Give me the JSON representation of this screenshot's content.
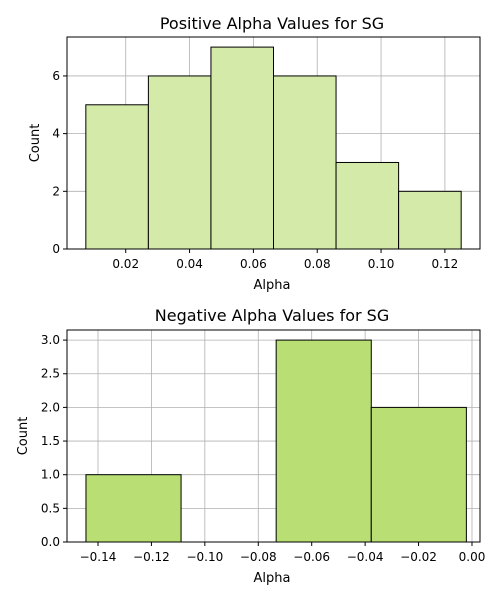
{
  "chart_data": [
    {
      "type": "bar",
      "title": "Positive Alpha Values for SG",
      "xlabel": "Alpha",
      "ylabel": "Count",
      "bins": [
        {
          "x0": 0.0075,
          "x1": 0.0271,
          "count": 5
        },
        {
          "x0": 0.0271,
          "x1": 0.0467,
          "count": 6
        },
        {
          "x0": 0.0467,
          "x1": 0.0663,
          "count": 7
        },
        {
          "x0": 0.0663,
          "x1": 0.0859,
          "count": 6
        },
        {
          "x0": 0.0859,
          "x1": 0.1055,
          "count": 3
        },
        {
          "x0": 0.1055,
          "x1": 0.1251,
          "count": 2
        }
      ],
      "xlim": [
        0.0016,
        0.131
      ],
      "ylim": [
        0,
        7.35
      ],
      "xticks": [
        0.02,
        0.04,
        0.06,
        0.08,
        0.1,
        0.12
      ],
      "xtick_labels": [
        "0.02",
        "0.04",
        "0.06",
        "0.08",
        "0.10",
        "0.12"
      ],
      "yticks": [
        0,
        2,
        4,
        6
      ],
      "ytick_labels": [
        "0",
        "2",
        "4",
        "6"
      ],
      "bar_color": "#d3eaa9",
      "grid": true
    },
    {
      "type": "bar",
      "title": "Negative Alpha Values for SG",
      "xlabel": "Alpha",
      "ylabel": "Count",
      "bins": [
        {
          "x0": -0.1445,
          "x1": -0.1089,
          "count": 1
        },
        {
          "x0": -0.1089,
          "x1": -0.0733,
          "count": 0
        },
        {
          "x0": -0.0733,
          "x1": -0.0377,
          "count": 3
        },
        {
          "x0": -0.0377,
          "x1": -0.0021,
          "count": 2
        }
      ],
      "xlim": [
        -0.1516,
        0.003
      ],
      "ylim": [
        0,
        3.15
      ],
      "xticks": [
        -0.14,
        -0.12,
        -0.1,
        -0.08,
        -0.06,
        -0.04,
        -0.02,
        0.0
      ],
      "xtick_labels": [
        "−0.14",
        "−0.12",
        "−0.10",
        "−0.08",
        "−0.06",
        "−0.04",
        "−0.02",
        "0.00"
      ],
      "yticks": [
        0,
        0.5,
        1,
        1.5,
        2,
        2.5,
        3
      ],
      "ytick_labels": [
        "0.0",
        "0.5",
        "1.0",
        "1.5",
        "2.0",
        "2.5",
        "3.0"
      ],
      "bar_color": "#b9df74",
      "grid": true
    }
  ]
}
